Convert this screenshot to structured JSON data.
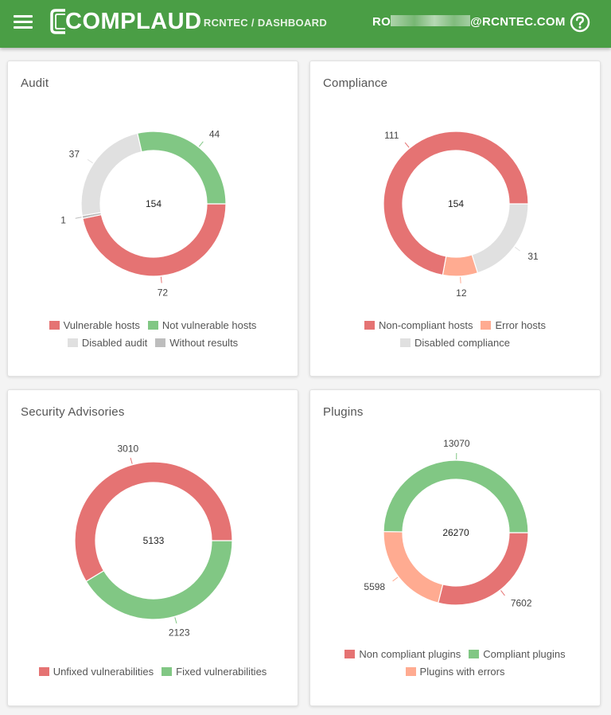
{
  "header": {
    "logo_text": "COMPLAUD",
    "breadcrumb": [
      "RCNTEC",
      "DASHBOARD"
    ],
    "email_prefix": "RO",
    "email_suffix": "@RCNTEC.COM",
    "icons": {
      "menu": "menu-icon",
      "help": "help-icon"
    },
    "bar_color": "#4a9e45"
  },
  "cards": {
    "audit": {
      "title": "Audit"
    },
    "compliance": {
      "title": "Compliance"
    },
    "advisories": {
      "title": "Security Advisories"
    },
    "plugins": {
      "title": "Plugins"
    }
  },
  "chart_data": [
    {
      "id": "audit",
      "type": "pie",
      "title": "Audit",
      "center_label": "154",
      "series": [
        {
          "name": "Vulnerable hosts",
          "value": 72,
          "color": "#e57373"
        },
        {
          "name": "Without results",
          "value": 1,
          "color": "#bdbdbd"
        },
        {
          "name": "Disabled audit",
          "value": 37,
          "color": "#e0e0e0"
        },
        {
          "name": "Not vulnerable hosts",
          "value": 44,
          "color": "#81c784"
        }
      ],
      "legend_rows": [
        [
          "Vulnerable hosts",
          "Not vulnerable hosts"
        ],
        [
          "Disabled audit",
          "Without results"
        ]
      ]
    },
    {
      "id": "compliance",
      "type": "pie",
      "title": "Compliance",
      "center_label": "154",
      "series": [
        {
          "name": "Disabled compliance",
          "value": 31,
          "color": "#e0e0e0"
        },
        {
          "name": "Error hosts",
          "value": 12,
          "color": "#ffab91"
        },
        {
          "name": "Non-compliant hosts",
          "value": 111,
          "color": "#e57373"
        }
      ],
      "legend_rows": [
        [
          "Non-compliant hosts",
          "Error hosts"
        ],
        [
          "Disabled compliance"
        ]
      ]
    },
    {
      "id": "advisories",
      "type": "pie",
      "title": "Security Advisories",
      "center_label": "5133",
      "series": [
        {
          "name": "Fixed vulnerabilities",
          "value": 2123,
          "color": "#81c784"
        },
        {
          "name": "Unfixed vulnerabilities",
          "value": 3010,
          "color": "#e57373"
        }
      ],
      "legend_rows": [
        [
          "Unfixed vulnerabilities",
          "Fixed vulnerabilities"
        ]
      ]
    },
    {
      "id": "plugins",
      "type": "pie",
      "title": "Plugins",
      "center_label": "26270",
      "series": [
        {
          "name": "Non compliant plugins",
          "value": 7602,
          "color": "#e57373"
        },
        {
          "name": "Plugins with errors",
          "value": 5598,
          "color": "#ffab91"
        },
        {
          "name": "Compliant plugins",
          "value": 13070,
          "color": "#81c784"
        }
      ],
      "legend_rows": [
        [
          "Non compliant plugins",
          "Compliant plugins"
        ],
        [
          "Plugins with errors"
        ]
      ]
    }
  ]
}
